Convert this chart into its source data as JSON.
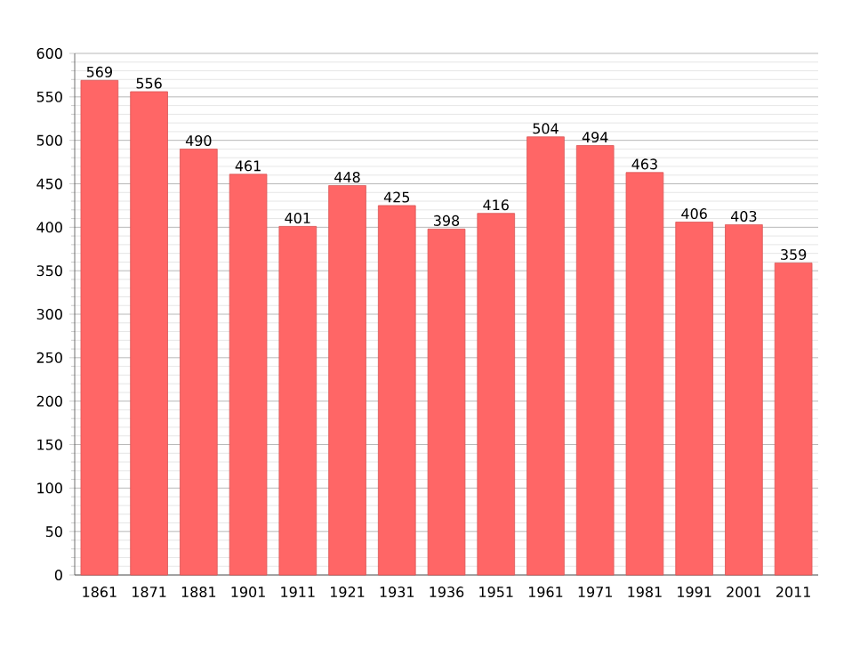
{
  "chart_data": {
    "type": "bar",
    "categories": [
      "1861",
      "1871",
      "1881",
      "1901",
      "1911",
      "1921",
      "1931",
      "1936",
      "1951",
      "1961",
      "1971",
      "1981",
      "1991",
      "2001",
      "2011"
    ],
    "values": [
      569,
      556,
      490,
      461,
      401,
      448,
      425,
      398,
      416,
      504,
      494,
      463,
      406,
      403,
      359
    ],
    "color": "#ff6666",
    "ylim": [
      0,
      600
    ],
    "yticks": [
      0,
      50,
      100,
      150,
      200,
      250,
      300,
      350,
      400,
      450,
      500,
      550,
      600
    ],
    "grid": "y",
    "data_labels": true
  }
}
